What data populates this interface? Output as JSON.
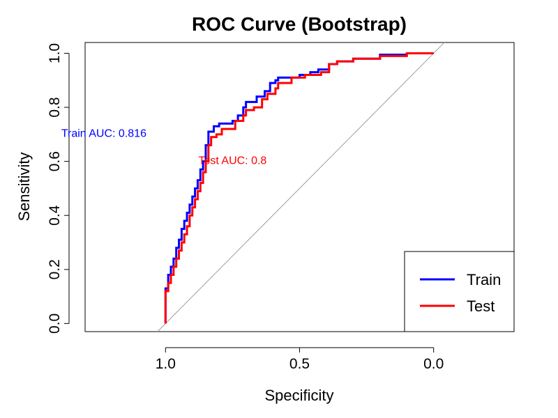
{
  "chart_data": {
    "type": "line",
    "title": "ROC Curve (Bootstrap)",
    "xlabel": "Specificity",
    "ylabel": "Sensitivity",
    "xlim": [
      1.3,
      -0.3
    ],
    "ylim": [
      -0.03,
      1.04
    ],
    "x_ticks": [
      1.0,
      0.5,
      0.0
    ],
    "x_tick_labels": [
      "1.0",
      "0.5",
      "0.0"
    ],
    "y_ticks": [
      0.0,
      0.2,
      0.4,
      0.6,
      0.8,
      1.0
    ],
    "y_tick_labels": [
      "0.0",
      "0.2",
      "0.4",
      "0.6",
      "0.8",
      "1.0"
    ],
    "diagonal": {
      "color": "#9e9e9e",
      "from": [
        1.0,
        0.0
      ],
      "to": [
        0.0,
        1.0
      ]
    },
    "series": [
      {
        "name": "Train",
        "color": "#0000ff",
        "points": [
          [
            1.0,
            0.0
          ],
          [
            1.0,
            0.12
          ],
          [
            0.99,
            0.13
          ],
          [
            0.98,
            0.18
          ],
          [
            0.97,
            0.21
          ],
          [
            0.96,
            0.24
          ],
          [
            0.95,
            0.28
          ],
          [
            0.94,
            0.31
          ],
          [
            0.93,
            0.35
          ],
          [
            0.92,
            0.38
          ],
          [
            0.91,
            0.41
          ],
          [
            0.9,
            0.44
          ],
          [
            0.89,
            0.47
          ],
          [
            0.88,
            0.5
          ],
          [
            0.87,
            0.53
          ],
          [
            0.86,
            0.57
          ],
          [
            0.85,
            0.6
          ],
          [
            0.84,
            0.66
          ],
          [
            0.82,
            0.71
          ],
          [
            0.8,
            0.73
          ],
          [
            0.75,
            0.74
          ],
          [
            0.73,
            0.75
          ],
          [
            0.71,
            0.77
          ],
          [
            0.7,
            0.8
          ],
          [
            0.69,
            0.82
          ],
          [
            0.66,
            0.82
          ],
          [
            0.63,
            0.84
          ],
          [
            0.61,
            0.86
          ],
          [
            0.59,
            0.89
          ],
          [
            0.58,
            0.9
          ],
          [
            0.5,
            0.91
          ],
          [
            0.46,
            0.92
          ],
          [
            0.43,
            0.93
          ],
          [
            0.39,
            0.94
          ],
          [
            0.36,
            0.96
          ],
          [
            0.3,
            0.97
          ],
          [
            0.2,
            0.98
          ],
          [
            0.1,
            0.995
          ],
          [
            0.05,
            1.0
          ],
          [
            0.0,
            1.0
          ]
        ]
      },
      {
        "name": "Test",
        "color": "#ff0000",
        "points": [
          [
            1.0,
            0.0
          ],
          [
            1.0,
            0.1
          ],
          [
            0.99,
            0.12
          ],
          [
            0.98,
            0.15
          ],
          [
            0.97,
            0.18
          ],
          [
            0.96,
            0.21
          ],
          [
            0.95,
            0.24
          ],
          [
            0.94,
            0.27
          ],
          [
            0.93,
            0.3
          ],
          [
            0.92,
            0.33
          ],
          [
            0.91,
            0.36
          ],
          [
            0.9,
            0.4
          ],
          [
            0.89,
            0.43
          ],
          [
            0.88,
            0.46
          ],
          [
            0.87,
            0.49
          ],
          [
            0.86,
            0.52
          ],
          [
            0.85,
            0.56
          ],
          [
            0.84,
            0.6
          ],
          [
            0.83,
            0.66
          ],
          [
            0.81,
            0.69
          ],
          [
            0.79,
            0.7
          ],
          [
            0.74,
            0.72
          ],
          [
            0.71,
            0.75
          ],
          [
            0.7,
            0.77
          ],
          [
            0.69,
            0.79
          ],
          [
            0.67,
            0.79
          ],
          [
            0.64,
            0.8
          ],
          [
            0.62,
            0.83
          ],
          [
            0.59,
            0.85
          ],
          [
            0.58,
            0.87
          ],
          [
            0.53,
            0.89
          ],
          [
            0.48,
            0.91
          ],
          [
            0.42,
            0.92
          ],
          [
            0.39,
            0.93
          ],
          [
            0.36,
            0.96
          ],
          [
            0.3,
            0.97
          ],
          [
            0.2,
            0.98
          ],
          [
            0.1,
            0.99
          ],
          [
            0.05,
            1.0
          ],
          [
            0.0,
            1.0
          ]
        ]
      }
    ],
    "annotations": [
      {
        "text": "Train AUC: 0.816",
        "x": 1.23,
        "y": 0.69,
        "color": "#0000ff"
      },
      {
        "text": "Test AUC: 0.8",
        "x": 0.75,
        "y": 0.59,
        "color": "#ff0000"
      }
    ],
    "legend": {
      "position": "bottom-right",
      "entries": [
        "Train",
        "Test"
      ]
    },
    "grid": false
  }
}
